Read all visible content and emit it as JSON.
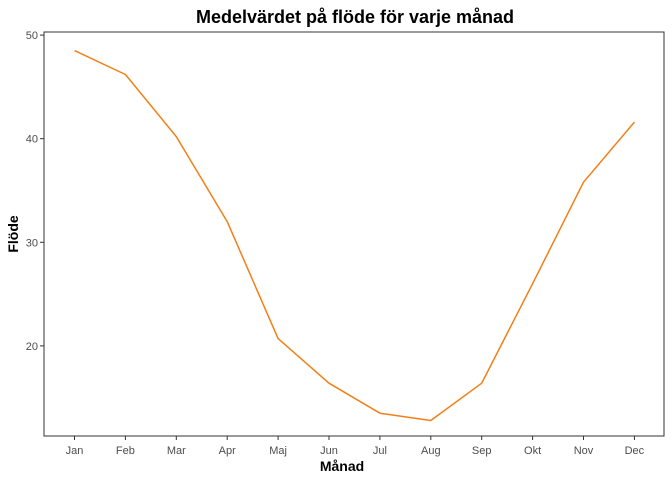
{
  "chart_data": {
    "type": "line",
    "title": "Medelvärdet på flöde för varje månad",
    "xlabel": "Månad",
    "ylabel": "Flöde",
    "categories": [
      "Jan",
      "Feb",
      "Mar",
      "Apr",
      "Maj",
      "Jun",
      "Jul",
      "Aug",
      "Sep",
      "Okt",
      "Nov",
      "Dec"
    ],
    "series": [
      {
        "values": [
          48.5,
          46.2,
          40.2,
          32.0,
          20.7,
          16.4,
          13.5,
          12.8,
          16.4,
          26.0,
          35.8,
          41.6
        ],
        "color": "#f27f17"
      }
    ],
    "yticks": [
      20,
      30,
      40,
      50
    ],
    "ylim": [
      11.3,
      50.3
    ],
    "grid": false,
    "legend": "none",
    "panel_border_color": "#333333"
  }
}
